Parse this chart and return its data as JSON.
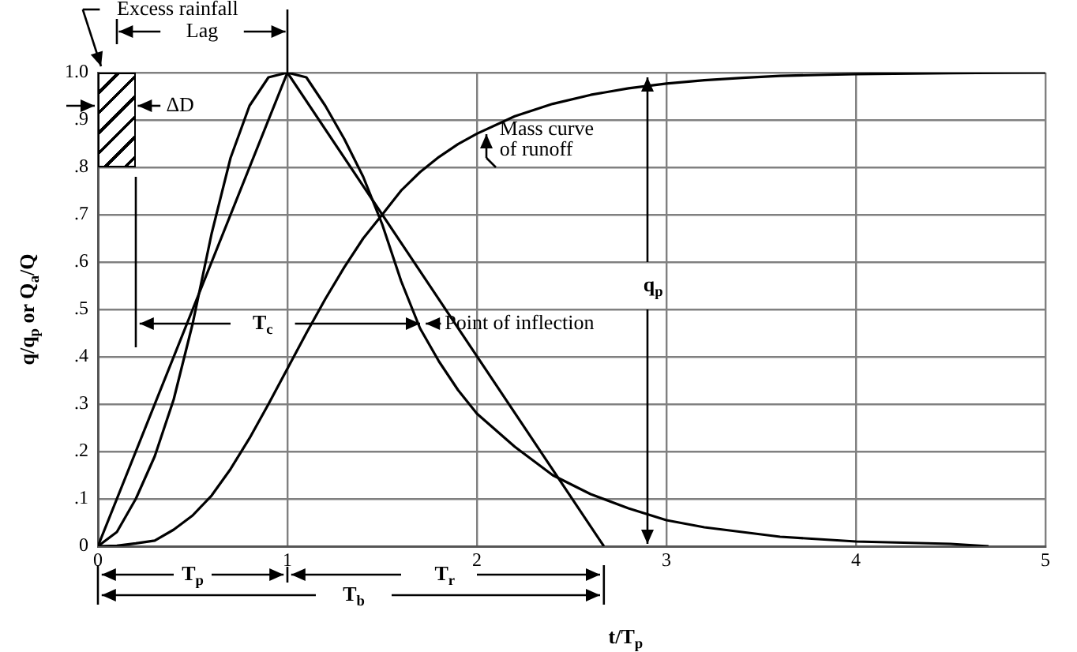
{
  "chart_data": {
    "type": "line",
    "xlabel": "t/T$_{p}$",
    "ylabel": "q/q$_{p}$ or Q$_{a}$/Q",
    "xlim": [
      0,
      5
    ],
    "xticks": [
      0,
      1,
      2,
      3,
      4,
      5
    ],
    "ylim": [
      0,
      1
    ],
    "yticks": [
      0,
      {
        "value": 0.1,
        "label": ".1"
      },
      {
        "value": 0.2,
        "label": ".2"
      },
      {
        "value": 0.3,
        "label": ".3"
      },
      {
        "value": 0.4,
        "label": ".4"
      },
      {
        "value": 0.5,
        "label": ".5"
      },
      {
        "value": 0.6,
        "label": ".6"
      },
      {
        "value": 0.7,
        "label": ".7"
      },
      {
        "value": 0.8,
        "label": ".8"
      },
      {
        "value": 0.9,
        "label": ".9"
      },
      {
        "value": 1,
        "label": "1.0"
      }
    ],
    "grid": true,
    "marker": "none",
    "line_style": "solid",
    "series": [
      {
        "color": "#000000",
        "x": [
          0,
          0.1,
          0.2,
          0.3,
          0.4,
          0.5,
          0.6,
          0.7,
          0.8,
          0.9,
          1.0,
          1.1,
          1.2,
          1.3,
          1.4,
          1.5,
          1.6,
          1.7,
          1.8,
          1.9,
          2.0,
          2.2,
          2.4,
          2.6,
          2.8,
          3.0,
          3.2,
          3.4,
          3.6,
          3.8,
          4.0,
          4.5,
          4.7
        ],
        "values": [
          0,
          0.03,
          0.1,
          0.19,
          0.31,
          0.47,
          0.66,
          0.82,
          0.93,
          0.99,
          1.0,
          0.99,
          0.93,
          0.86,
          0.78,
          0.68,
          0.56,
          0.46,
          0.39,
          0.33,
          0.28,
          0.21,
          0.15,
          0.11,
          0.08,
          0.055,
          0.04,
          0.03,
          0.02,
          0.015,
          0.01,
          0.005,
          0
        ]
      },
      {
        "color": "#000000",
        "x": [
          0,
          1,
          2.67
        ],
        "values": [
          0,
          1,
          0
        ]
      },
      {
        "color": "#000000",
        "x": [
          0,
          0.1,
          0.2,
          0.3,
          0.4,
          0.5,
          0.6,
          0.7,
          0.8,
          0.9,
          1.0,
          1.1,
          1.2,
          1.3,
          1.4,
          1.5,
          1.6,
          1.7,
          1.8,
          1.9,
          2.0,
          2.2,
          2.4,
          2.6,
          2.8,
          3.0,
          3.2,
          3.4,
          3.6,
          3.8,
          4.0,
          4.5,
          5.0
        ],
        "values": [
          0,
          0.001,
          0.006,
          0.012,
          0.035,
          0.065,
          0.107,
          0.163,
          0.228,
          0.3,
          0.375,
          0.45,
          0.522,
          0.589,
          0.65,
          0.7,
          0.751,
          0.79,
          0.822,
          0.849,
          0.871,
          0.908,
          0.934,
          0.953,
          0.967,
          0.977,
          0.984,
          0.989,
          0.993,
          0.995,
          0.997,
          0.999,
          1.0
        ]
      }
    ],
    "annotations": [
      "Excess rainfall",
      "Lag",
      "ΔD",
      "T$_{c}$",
      "Point of inflection",
      "Mass curve\nof runoff",
      "q$_{p}$",
      "T$_{p}$",
      "T$_{r}$",
      "T$_{b}$"
    ]
  }
}
